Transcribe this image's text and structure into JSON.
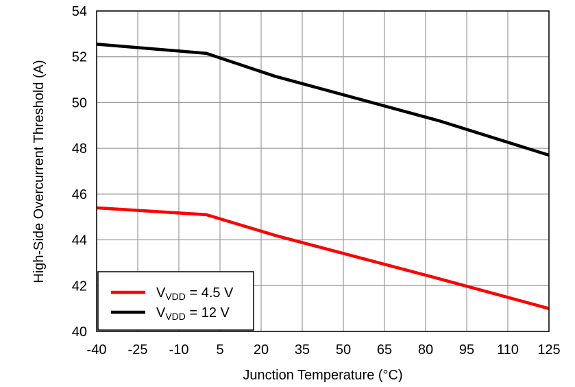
{
  "chart_data": {
    "type": "line",
    "title": "",
    "xlabel": "Junction Temperature (°C)",
    "ylabel": "High-Side Overcurrent Threshold (A)",
    "xlim": [
      -40,
      125
    ],
    "ylim": [
      40,
      54
    ],
    "xticks": [
      -40,
      -25,
      -10,
      5,
      20,
      35,
      50,
      65,
      80,
      95,
      110,
      125
    ],
    "yticks": [
      40,
      42,
      44,
      46,
      48,
      50,
      52,
      54
    ],
    "grid": true,
    "legend_position": "bottom-left",
    "series": [
      {
        "name": "V_VDD = 4.5 V",
        "label_main": "V",
        "label_sub": "VDD",
        "label_rest": " = 4.5 V",
        "color": "#ff0000",
        "x": [
          -40,
          0,
          25,
          85,
          125
        ],
        "y": [
          45.4,
          45.1,
          44.2,
          42.3,
          41.0
        ]
      },
      {
        "name": "V_VDD = 12 V",
        "label_main": "V",
        "label_sub": "VDD",
        "label_rest": " = 12 V",
        "color": "#000000",
        "x": [
          -40,
          0,
          25,
          85,
          125
        ],
        "y": [
          52.55,
          52.15,
          51.15,
          49.2,
          47.7
        ]
      }
    ]
  }
}
